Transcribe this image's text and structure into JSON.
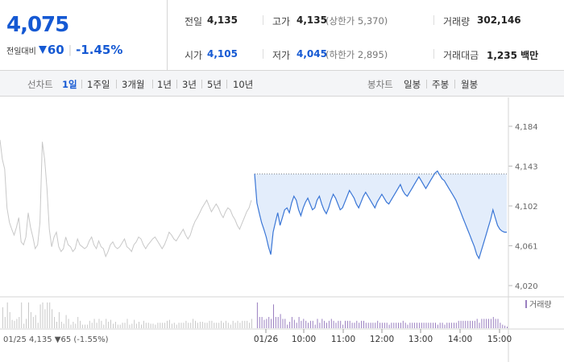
{
  "quote": {
    "price": "4,075",
    "change_label": "전일대비",
    "change_value": "60",
    "change_rate": "-1.45%",
    "prev_close_label": "전일",
    "prev_close": "4,135",
    "high_label": "고가",
    "high": "4,135",
    "upper_limit": "(상한가 5,370)",
    "volume_label": "거래량",
    "volume": "302,146",
    "open_label": "시가",
    "open": "4,105",
    "low_label": "저가",
    "low": "4,045",
    "lower_limit": "(하한가 2,895)",
    "amount_label": "거래대금",
    "amount": "1,235 백만"
  },
  "toolbar": {
    "line_chart_label": "선차트",
    "line_periods": [
      "1일",
      "1주일",
      "3개월",
      "1년",
      "3년",
      "5년",
      "10년"
    ],
    "active_period": "1일",
    "candle_chart_label": "봉차트",
    "candle_periods": [
      "일봉",
      "주봉",
      "월봉"
    ]
  },
  "colors": {
    "accent_blue": "#1559d3",
    "line_blue": "#3a76d6",
    "prev_day_gray": "#c8c8c8",
    "fill_blue": "#e3edfb",
    "volume_purple": "#9a7fc0"
  },
  "chart_data": {
    "type": "line",
    "y_ticks": [
      "4,184",
      "4,143",
      "4,102",
      "4,061",
      "4,020"
    ],
    "ylim": [
      4020,
      4184
    ],
    "reference_price": 4135,
    "x_labels": [
      "01/26",
      "10:00",
      "11:00",
      "12:00",
      "13:00",
      "14:00",
      "15:00"
    ],
    "volume_label": "거래량",
    "prev_day_info": "01/25  4,135 ▼65 (-1.55%)",
    "prev_day_series": [
      4170,
      4150,
      4140,
      4100,
      4085,
      4078,
      4072,
      4080,
      4090,
      4065,
      4062,
      4070,
      4095,
      4080,
      4070,
      4058,
      4062,
      4085,
      4168,
      4150,
      4120,
      4078,
      4060,
      4070,
      4075,
      4060,
      4055,
      4058,
      4070,
      4062,
      4060,
      4055,
      4058,
      4068,
      4062,
      4060,
      4058,
      4060,
      4066,
      4070,
      4062,
      4058,
      4066,
      4060,
      4058,
      4050,
      4055,
      4062,
      4065,
      4060,
      4058,
      4060,
      4064,
      4068,
      4060,
      4058,
      4055,
      4062,
      4065,
      4070,
      4068,
      4062,
      4058,
      4062,
      4065,
      4068,
      4070,
      4066,
      4062,
      4058,
      4062,
      4068,
      4075,
      4072,
      4068,
      4066,
      4070,
      4074,
      4078,
      4072,
      4068,
      4072,
      4080,
      4086,
      4090,
      4095,
      4100,
      4104,
      4108,
      4102,
      4096,
      4100,
      4104,
      4100,
      4094,
      4090,
      4096,
      4100,
      4098,
      4092,
      4088,
      4082,
      4078,
      4084,
      4090,
      4096,
      4100,
      4108
    ],
    "today_series": [
      4135,
      4105,
      4095,
      4085,
      4078,
      4070,
      4060,
      4052,
      4075,
      4085,
      4095,
      4082,
      4090,
      4098,
      4100,
      4095,
      4105,
      4112,
      4108,
      4098,
      4092,
      4100,
      4106,
      4110,
      4104,
      4098,
      4100,
      4108,
      4112,
      4104,
      4098,
      4094,
      4100,
      4108,
      4114,
      4110,
      4104,
      4098,
      4100,
      4106,
      4112,
      4118,
      4114,
      4110,
      4104,
      4100,
      4106,
      4112,
      4116,
      4112,
      4108,
      4104,
      4100,
      4106,
      4110,
      4114,
      4110,
      4106,
      4104,
      4108,
      4112,
      4116,
      4120,
      4124,
      4118,
      4114,
      4112,
      4116,
      4120,
      4124,
      4128,
      4132,
      4128,
      4124,
      4120,
      4124,
      4128,
      4132,
      4136,
      4138,
      4134,
      4130,
      4128,
      4124,
      4120,
      4116,
      4112,
      4108,
      4102,
      4096,
      4090,
      4084,
      4078,
      4072,
      4066,
      4060,
      4052,
      4048,
      4056,
      4064,
      4072,
      4080,
      4088,
      4098,
      4090,
      4082,
      4078,
      4076,
      4075,
      4075
    ]
  }
}
